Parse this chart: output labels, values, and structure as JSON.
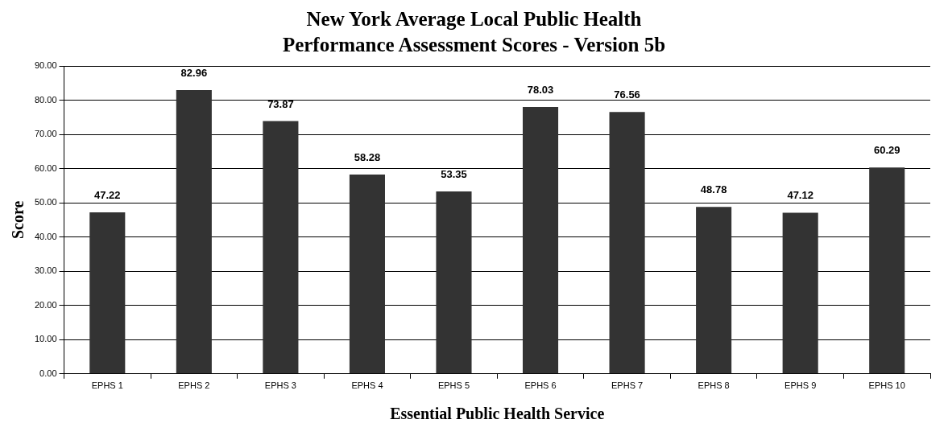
{
  "chart_data": {
    "type": "bar",
    "title": "New York Average Local Public Health Performance Assessment Scores - Version 5b",
    "xlabel": "Essential Public Health Service",
    "ylabel": "Score",
    "categories": [
      "EPHS 1",
      "EPHS 2",
      "EPHS 3",
      "EPHS 4",
      "EPHS 5",
      "EPHS 6",
      "EPHS 7",
      "EPHS 8",
      "EPHS 9",
      "EPHS 10"
    ],
    "values": [
      47.22,
      82.96,
      73.87,
      58.28,
      53.35,
      78.03,
      76.56,
      48.78,
      47.12,
      60.29
    ],
    "color": "#333333",
    "ylim": [
      0,
      90
    ],
    "yticks": [
      {
        "value": 0,
        "label": "0.00"
      },
      {
        "value": 10,
        "label": "10.00"
      },
      {
        "value": 20,
        "label": "20.00"
      },
      {
        "value": 30,
        "label": "30.00"
      },
      {
        "value": 40,
        "label": "40.00"
      },
      {
        "value": 50,
        "label": "50.00"
      },
      {
        "value": 60,
        "label": "60.00"
      },
      {
        "value": 70,
        "label": "70.00"
      },
      {
        "value": 80,
        "label": "80.00"
      },
      {
        "value": 90,
        "label": "90.00"
      }
    ],
    "grid": "y",
    "legend": false,
    "data_labels": true
  }
}
